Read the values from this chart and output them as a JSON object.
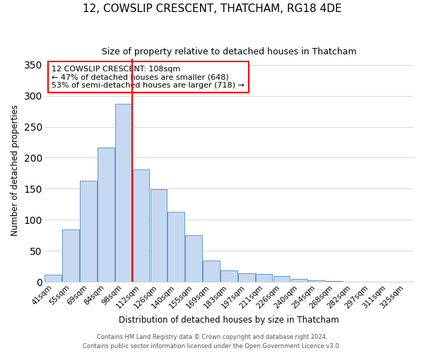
{
  "title": "12, COWSLIP CRESCENT, THATCHAM, RG18 4DE",
  "subtitle": "Size of property relative to detached houses in Thatcham",
  "xlabel": "Distribution of detached houses by size in Thatcham",
  "ylabel": "Number of detached properties",
  "bar_labels": [
    "41sqm",
    "55sqm",
    "69sqm",
    "84sqm",
    "98sqm",
    "112sqm",
    "126sqm",
    "140sqm",
    "155sqm",
    "169sqm",
    "183sqm",
    "197sqm",
    "211sqm",
    "226sqm",
    "240sqm",
    "254sqm",
    "268sqm",
    "282sqm",
    "297sqm",
    "311sqm",
    "325sqm"
  ],
  "bar_values": [
    11,
    84,
    163,
    216,
    287,
    181,
    149,
    113,
    75,
    34,
    18,
    14,
    12,
    9,
    5,
    2,
    1,
    0.3,
    0.3,
    0.3,
    0.3
  ],
  "bar_color": "#c6d9f1",
  "bar_edge_color": "#5b9bd5",
  "vline_color": "red",
  "annotation_text": "12 COWSLIP CRESCENT: 108sqm\n← 47% of detached houses are smaller (648)\n53% of semi-detached houses are larger (718) →",
  "annotation_box_edgecolor": "red",
  "ylim": [
    0,
    360
  ],
  "yticks": [
    0,
    50,
    100,
    150,
    200,
    250,
    300,
    350
  ],
  "footer1": "Contains HM Land Registry data © Crown copyright and database right 2024.",
  "footer2": "Contains public sector information licensed under the Open Government Licence v3.0.",
  "background_color": "#ffffff",
  "grid_color": "#d0d0d0"
}
